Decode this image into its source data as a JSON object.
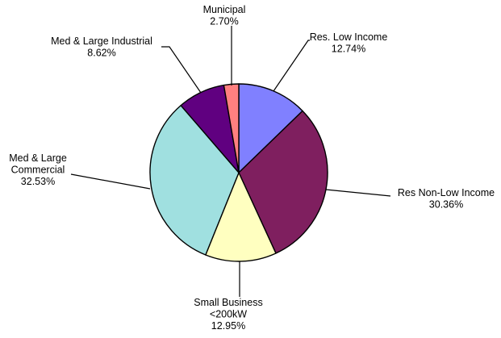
{
  "chart_data": {
    "type": "pie",
    "title": "",
    "slices": [
      {
        "label_lines": [
          "Res. Low Income"
        ],
        "value": 12.74,
        "value_label": "12.74%",
        "color": "#8080ff"
      },
      {
        "label_lines": [
          "Res Non-Low Income"
        ],
        "value": 30.36,
        "value_label": "30.36%",
        "color": "#7f1f5f"
      },
      {
        "label_lines": [
          "Small Business",
          "<200kW"
        ],
        "value": 12.95,
        "value_label": "12.95%",
        "color": "#ffffc0"
      },
      {
        "label_lines": [
          "Med & Large",
          "Commercial"
        ],
        "value": 32.53,
        "value_label": "32.53%",
        "color": "#a0e0e0"
      },
      {
        "label_lines": [
          "Med & Large Industrial"
        ],
        "value": 8.62,
        "value_label": "8.62%",
        "color": "#600080"
      },
      {
        "label_lines": [
          "Municipal"
        ],
        "value": 2.7,
        "value_label": "2.70%",
        "color": "#ff8080"
      }
    ],
    "start_angle": "12 o'clock",
    "direction": "clockwise",
    "legend": "none",
    "labels": "outside with leader lines"
  }
}
